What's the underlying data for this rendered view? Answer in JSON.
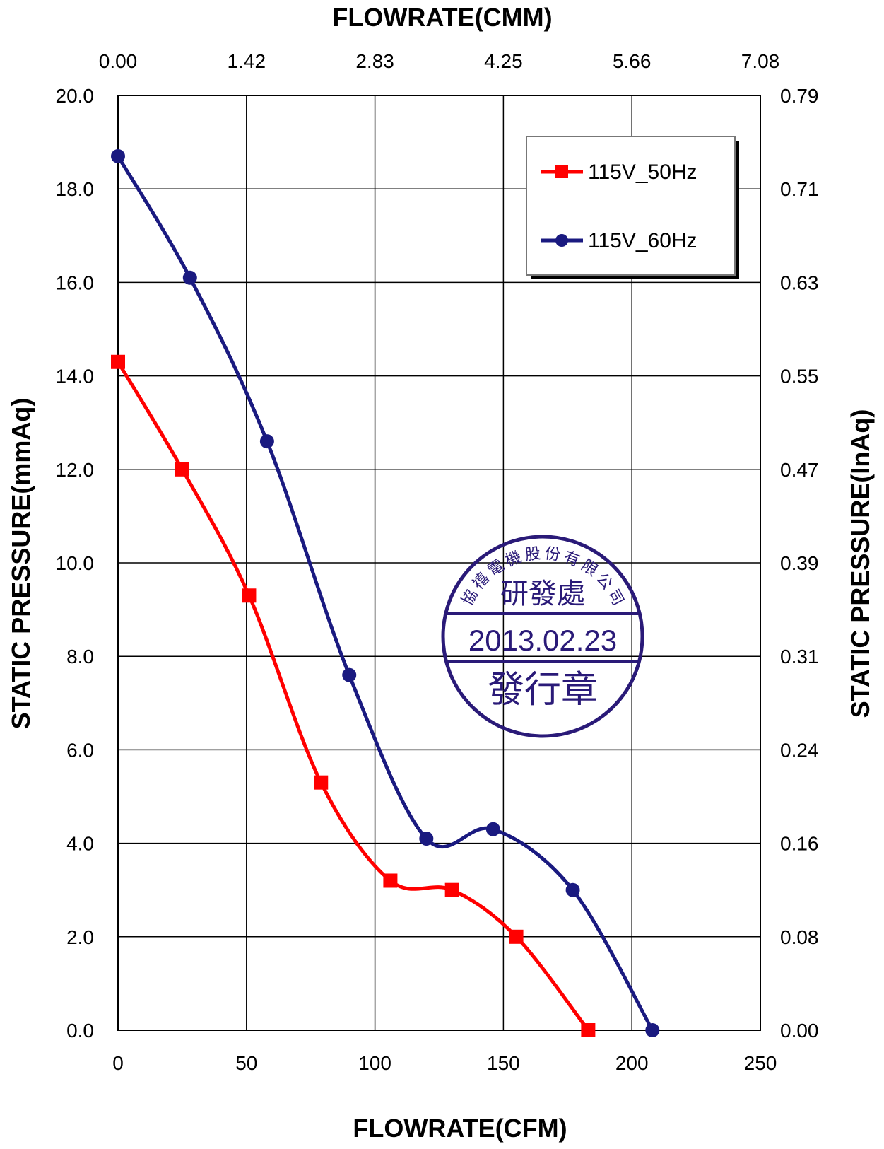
{
  "chart_data": {
    "type": "line",
    "title": "",
    "xlabel": "FLOWRATE(CFM)",
    "x2label": "FLOWRATE(CMM)",
    "ylabel": "STATIC PRESSURE(mmAq)",
    "y2label": "STATIC PRESSURE(InAq)",
    "xlim": [
      0,
      250
    ],
    "ylim": [
      0,
      20
    ],
    "x_ticks": [
      "0",
      "50",
      "100",
      "150",
      "200",
      "250"
    ],
    "x2_ticks": [
      "0.00",
      "1.42",
      "2.83",
      "4.25",
      "5.66",
      "7.08"
    ],
    "y_ticks": [
      "0.0",
      "2.0",
      "4.0",
      "6.0",
      "8.0",
      "10.0",
      "12.0",
      "14.0",
      "16.0",
      "18.0",
      "20.0"
    ],
    "y2_ticks": [
      "0.00",
      "0.08",
      "0.16",
      "0.24",
      "0.31",
      "0.39",
      "0.47",
      "0.55",
      "0.63",
      "0.71",
      "0.79"
    ],
    "grid": true,
    "legend_position": "top-right",
    "series": [
      {
        "name": "115V_50Hz",
        "color": "#ff0000",
        "marker": "square",
        "x": [
          0,
          25,
          51,
          79,
          106,
          130,
          155,
          183
        ],
        "y": [
          14.3,
          12.0,
          9.3,
          5.3,
          3.2,
          3.0,
          2.0,
          0.0
        ]
      },
      {
        "name": "115V_60Hz",
        "color": "#1a1a80",
        "marker": "circle",
        "x": [
          0,
          28,
          58,
          90,
          120,
          146,
          177,
          208
        ],
        "y": [
          18.7,
          16.1,
          12.6,
          7.6,
          4.1,
          4.3,
          3.0,
          0.0
        ]
      }
    ]
  },
  "stamp": {
    "company": "協禧電機股份有限公司",
    "department": "研發處",
    "date": "2013.02.23",
    "label": "發行章",
    "color": "#2a1a78"
  }
}
